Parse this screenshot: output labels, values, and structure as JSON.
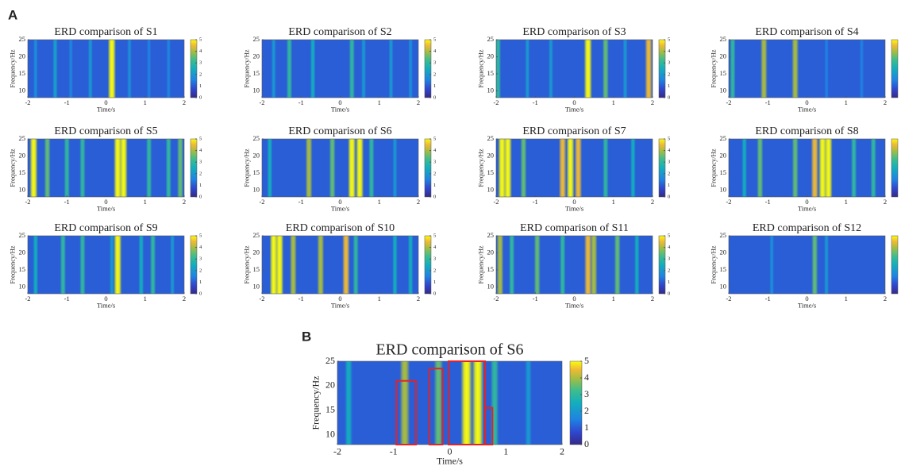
{
  "panel_labels": [
    "A",
    "B"
  ],
  "chart_data": [
    {
      "type": "heatmap",
      "title": "ERD comparison of S1",
      "xlabel": "Time/s",
      "ylabel": "Frequency/Hz",
      "xlim": [
        -2,
        2
      ],
      "ylim": [
        8,
        25
      ],
      "xticks": [
        -2,
        -1,
        0,
        1,
        2
      ],
      "yticks": [
        10,
        15,
        20,
        25
      ],
      "clim": [
        0,
        5
      ],
      "cticks": [
        0,
        1,
        2,
        3,
        4,
        5
      ],
      "x": [
        -1.8,
        -1.3,
        -0.9,
        -0.4,
        0.15,
        0.6,
        1.1,
        1.6
      ],
      "values": [
        1.8,
        2.2,
        1.6,
        2,
        5,
        1.8,
        1.5,
        1.6
      ]
    },
    {
      "type": "heatmap",
      "title": "ERD comparison of S2",
      "xlabel": "Time/s",
      "ylabel": "Frequency/Hz",
      "xlim": [
        -2,
        2
      ],
      "ylim": [
        8,
        25
      ],
      "xticks": [
        -2,
        -1,
        0,
        1,
        2
      ],
      "yticks": [
        10,
        15,
        20,
        25
      ],
      "clim": [
        0,
        5
      ],
      "cticks": [
        0,
        1,
        2,
        3,
        4,
        5
      ],
      "x": [
        -1.7,
        -1.3,
        -0.7,
        0.3,
        0.6,
        1.3,
        1.8
      ],
      "values": [
        2,
        3,
        2.5,
        3,
        2,
        2,
        1.8
      ]
    },
    {
      "type": "heatmap",
      "title": "ERD comparison of S3",
      "xlabel": "Time/s",
      "ylabel": "Frequency/Hz",
      "xlim": [
        -2,
        2
      ],
      "ylim": [
        8,
        25
      ],
      "xticks": [
        -2,
        -1,
        0,
        1,
        2
      ],
      "yticks": [
        10,
        15,
        20,
        25
      ],
      "clim": [
        0,
        5
      ],
      "cticks": [
        0,
        1,
        2,
        3,
        4,
        5
      ],
      "x": [
        -1.95,
        -1.2,
        -0.6,
        0.35,
        0.8,
        1.3,
        1.9
      ],
      "values": [
        3,
        2,
        2,
        5,
        3.5,
        2,
        4.5
      ]
    },
    {
      "type": "heatmap",
      "title": "ERD comparison of S4",
      "xlabel": "Time/s",
      "ylabel": "Frequency/Hz",
      "xlim": [
        -2,
        2
      ],
      "ylim": [
        8,
        25
      ],
      "xticks": [
        -2,
        -1,
        0,
        1,
        2
      ],
      "yticks": [
        10,
        15,
        20,
        25
      ],
      "clim": [
        0,
        5
      ],
      "cticks": [],
      "x": [
        -1.9,
        -1.1,
        -0.3,
        0.5,
        1.4
      ],
      "values": [
        3,
        4,
        4,
        1.5,
        1.5
      ]
    },
    {
      "type": "heatmap",
      "title": "ERD comparison of S5",
      "xlabel": "Time/s",
      "ylabel": "Frequency/Hz",
      "xlim": [
        -2,
        2
      ],
      "ylim": [
        8,
        25
      ],
      "xticks": [
        -2,
        -1,
        0,
        1,
        2
      ],
      "yticks": [
        10,
        15,
        20,
        25
      ],
      "clim": [
        0,
        5
      ],
      "cticks": [
        0,
        1,
        2,
        3,
        4,
        5
      ],
      "x": [
        -1.85,
        -1.5,
        -1,
        -0.6,
        0.3,
        0.45,
        1.1,
        1.6,
        1.9
      ],
      "values": [
        5,
        3.5,
        3,
        3,
        5,
        5,
        3,
        3,
        3.5
      ]
    },
    {
      "type": "heatmap",
      "title": "ERD comparison of S6",
      "xlabel": "Time/s",
      "ylabel": "Frequency/Hz",
      "xlim": [
        -2,
        2
      ],
      "ylim": [
        8,
        25
      ],
      "xticks": [
        -2,
        -1,
        0,
        1,
        2
      ],
      "yticks": [
        10,
        15,
        20,
        25
      ],
      "clim": [
        0,
        5
      ],
      "cticks": [
        0,
        1,
        2,
        3,
        4,
        5
      ],
      "x": [
        -1.8,
        -0.8,
        -0.2,
        0.3,
        0.5,
        0.8,
        1.4
      ],
      "values": [
        2.5,
        4,
        3.5,
        5,
        5,
        3,
        2
      ]
    },
    {
      "type": "heatmap",
      "title": "ERD comparison of S7",
      "xlabel": "Time/s",
      "ylabel": "Frequency/Hz",
      "xlim": [
        -2,
        2
      ],
      "ylim": [
        8,
        25
      ],
      "xticks": [
        -2,
        -1,
        0,
        1,
        2
      ],
      "yticks": [
        10,
        15,
        20,
        25
      ],
      "clim": [
        0,
        5
      ],
      "cticks": [
        0,
        1,
        2,
        3,
        4,
        5
      ],
      "x": [
        -1.85,
        -1.7,
        -1.3,
        -0.3,
        -0.1,
        0.1,
        0.8,
        1.5
      ],
      "values": [
        5,
        5,
        3.5,
        4.5,
        5,
        4.5,
        3,
        2.5
      ]
    },
    {
      "type": "heatmap",
      "title": "ERD comparison of S8",
      "xlabel": "Time/s",
      "ylabel": "Frequency/Hz",
      "xlim": [
        -2,
        2
      ],
      "ylim": [
        8,
        25
      ],
      "xticks": [
        -2,
        -1,
        0,
        1,
        2
      ],
      "yticks": [
        10,
        15,
        20,
        25
      ],
      "clim": [
        0,
        5
      ],
      "cticks": [],
      "x": [
        -1.6,
        -1.2,
        -0.3,
        0.2,
        0.4,
        0.55,
        1.2,
        1.7
      ],
      "values": [
        2.5,
        3.5,
        3.5,
        4.5,
        5,
        5,
        3,
        3
      ]
    },
    {
      "type": "heatmap",
      "title": "ERD comparison of S9",
      "xlabel": "Time/s",
      "ylabel": "Frequency/Hz",
      "xlim": [
        -2,
        2
      ],
      "ylim": [
        8,
        25
      ],
      "xticks": [
        -2,
        -1,
        0,
        1,
        2
      ],
      "yticks": [
        10,
        15,
        20,
        25
      ],
      "clim": [
        0,
        5
      ],
      "cticks": [
        0,
        1,
        2,
        3,
        4,
        5
      ],
      "x": [
        -1.8,
        -1.1,
        -0.6,
        0.15,
        0.3,
        0.9,
        1.2,
        1.7
      ],
      "values": [
        2.5,
        3,
        3,
        2,
        5,
        2.5,
        3,
        2
      ]
    },
    {
      "type": "heatmap",
      "title": "ERD comparison of S10",
      "xlabel": "Time/s",
      "ylabel": "Frequency/Hz",
      "xlim": [
        -2,
        2
      ],
      "ylim": [
        8,
        25
      ],
      "xticks": [
        -2,
        -1,
        0,
        1,
        2
      ],
      "yticks": [
        10,
        15,
        20,
        25
      ],
      "clim": [
        0,
        5
      ],
      "cticks": [
        0,
        1,
        2,
        3,
        4,
        5
      ],
      "x": [
        -1.7,
        -1.55,
        -1.2,
        -0.5,
        0.15,
        0.4,
        1.4,
        1.8
      ],
      "values": [
        5,
        5,
        4,
        4,
        4.5,
        3,
        2.5,
        2.5
      ]
    },
    {
      "type": "heatmap",
      "title": "ERD comparison of S11",
      "xlabel": "Time/s",
      "ylabel": "Frequency/Hz",
      "xlim": [
        -2,
        2
      ],
      "ylim": [
        8,
        25
      ],
      "xticks": [
        -2,
        -1,
        0,
        1,
        2
      ],
      "yticks": [
        10,
        15,
        20,
        25
      ],
      "clim": [
        0,
        5
      ],
      "cticks": [
        0,
        1,
        2,
        3,
        4,
        5
      ],
      "x": [
        -1.9,
        -1.6,
        -0.95,
        -0.3,
        0.35,
        0.5,
        1.1,
        1.6
      ],
      "values": [
        4,
        3,
        3.5,
        3,
        4.5,
        4,
        3.5,
        2.5
      ]
    },
    {
      "type": "heatmap",
      "title": "ERD comparison of S12",
      "xlabel": "Time/s",
      "ylabel": "Frequency/Hz",
      "xlim": [
        -2,
        2
      ],
      "ylim": [
        8,
        25
      ],
      "xticks": [
        -2,
        -1,
        0,
        1,
        2
      ],
      "yticks": [
        10,
        15,
        20,
        25
      ],
      "clim": [
        0,
        5
      ],
      "cticks": [],
      "x": [
        -0.9,
        0.2,
        0.5
      ],
      "values": [
        1.8,
        3.5,
        2
      ]
    },
    {
      "type": "heatmap",
      "title": "ERD comparison of S6",
      "xlabel": "Time/s",
      "ylabel": "Frequency/Hz",
      "xlim": [
        -2,
        2
      ],
      "ylim": [
        8,
        25
      ],
      "xticks": [
        -2,
        -1,
        0,
        1,
        2
      ],
      "yticks": [
        10,
        15,
        20,
        25
      ],
      "clim": [
        0,
        5
      ],
      "cticks": [
        0,
        1,
        2,
        3,
        4,
        5
      ],
      "x": [
        -1.8,
        -0.8,
        -0.2,
        0.3,
        0.5,
        0.8,
        1.4
      ],
      "values": [
        2.5,
        4,
        3.5,
        5,
        5,
        3,
        2
      ],
      "boxes": [
        {
          "x": [
            -0.95,
            -0.6
          ],
          "top": 21
        },
        {
          "x": [
            -0.36,
            -0.13
          ],
          "top": 23.5
        },
        {
          "x": [
            -0.02,
            0.63
          ],
          "top": 25
        },
        {
          "x": [
            0.63,
            0.76
          ],
          "top": 15.5
        }
      ]
    }
  ]
}
